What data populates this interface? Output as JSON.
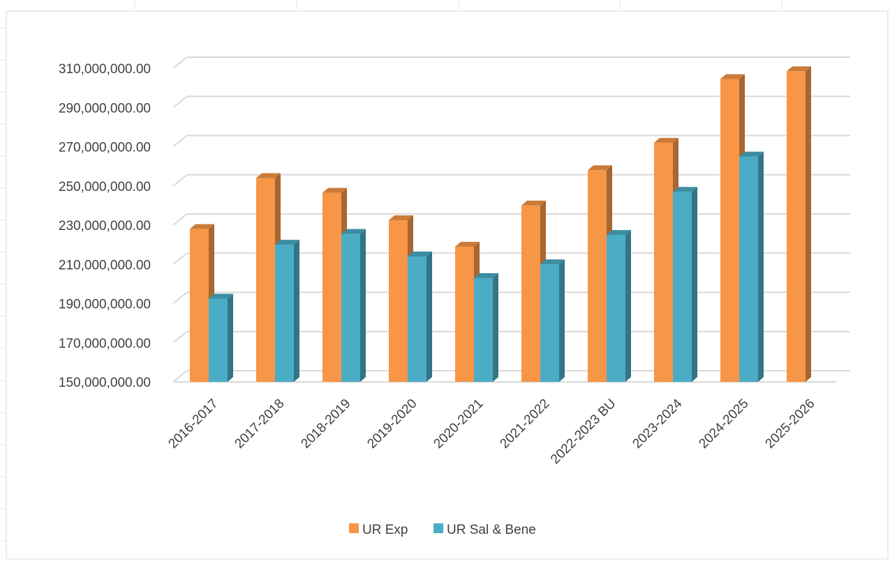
{
  "chart_data": {
    "type": "bar",
    "title": "",
    "xlabel": "",
    "ylabel": "",
    "categories": [
      "2016-2017",
      "2017-2018",
      "2018-2019",
      "2019-2020",
      "2020-2021",
      "2021-2022",
      "2022-2023 BU",
      "2023-2024",
      "2024-2025",
      "2025-2026"
    ],
    "series": [
      {
        "name": "UR Exp",
        "color": "#F79646",
        "values": [
          228000000,
          254000000,
          246500000,
          232500000,
          219000000,
          240000000,
          258000000,
          272000000,
          304500000,
          308500000
        ]
      },
      {
        "name": "UR Sal & Bene",
        "color": "#4BACC6",
        "values": [
          192500000,
          220000000,
          225500000,
          214000000,
          203000000,
          210000000,
          225000000,
          247000000,
          265000000,
          null
        ]
      }
    ],
    "ylim": [
      150000000,
      310000000
    ],
    "y_ticks": [
      "150,000,000.00",
      "170,000,000.00",
      "190,000,000.00",
      "210,000,000.00",
      "230,000,000.00",
      "250,000,000.00",
      "270,000,000.00",
      "290,000,000.00",
      "310,000,000.00"
    ],
    "y_tick_values": [
      150000000,
      170000000,
      190000000,
      210000000,
      230000000,
      250000000,
      270000000,
      290000000,
      310000000
    ],
    "grid": true,
    "legend_position": "bottom",
    "style": "3d-clustered-column"
  }
}
